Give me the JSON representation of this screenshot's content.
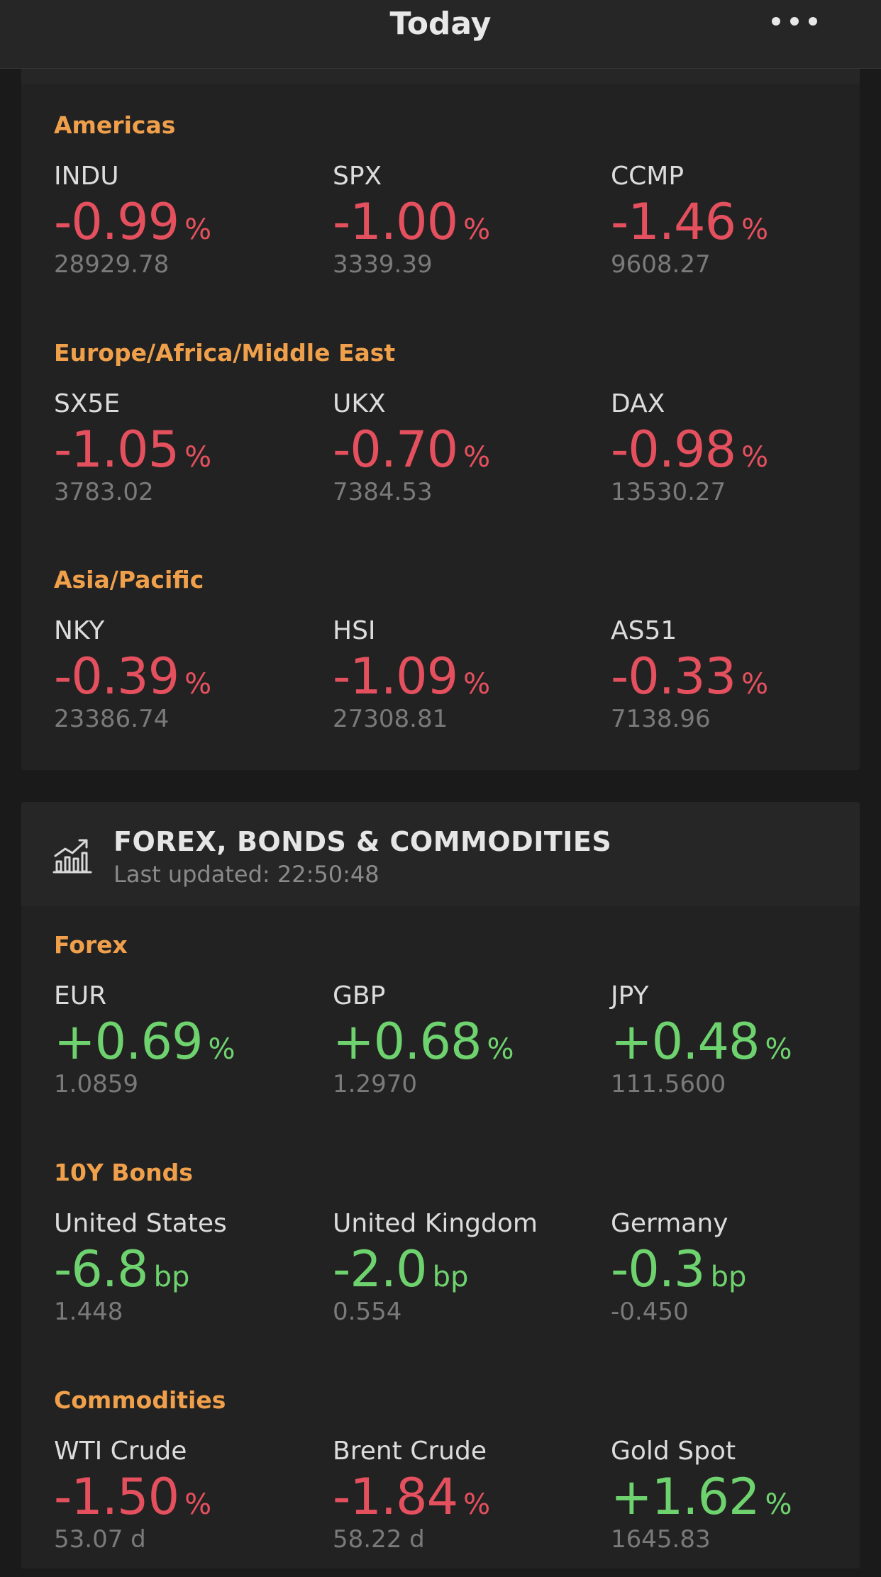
{
  "header": {
    "title": "Today",
    "more_icon": "more-horizontal-icon"
  },
  "markets": {
    "sections": [
      {
        "title": "Americas",
        "quotes": [
          {
            "name": "INDU",
            "change": "-0.99",
            "unit": "%",
            "level": "28929.78",
            "direction": "down"
          },
          {
            "name": "SPX",
            "change": "-1.00",
            "unit": "%",
            "level": "3339.39",
            "direction": "down"
          },
          {
            "name": "CCMP",
            "change": "-1.46",
            "unit": "%",
            "level": "9608.27",
            "direction": "down"
          }
        ]
      },
      {
        "title": "Europe/Africa/Middle East",
        "quotes": [
          {
            "name": "SX5E",
            "change": "-1.05",
            "unit": "%",
            "level": "3783.02",
            "direction": "down"
          },
          {
            "name": "UKX",
            "change": "-0.70",
            "unit": "%",
            "level": "7384.53",
            "direction": "down"
          },
          {
            "name": "DAX",
            "change": "-0.98",
            "unit": "%",
            "level": "13530.27",
            "direction": "down"
          }
        ]
      },
      {
        "title": "Asia/Pacific",
        "quotes": [
          {
            "name": "NKY",
            "change": "-0.39",
            "unit": "%",
            "level": "23386.74",
            "direction": "down"
          },
          {
            "name": "HSI",
            "change": "-1.09",
            "unit": "%",
            "level": "27308.81",
            "direction": "down"
          },
          {
            "name": "AS51",
            "change": "-0.33",
            "unit": "%",
            "level": "7138.96",
            "direction": "down"
          }
        ]
      }
    ]
  },
  "forex_card": {
    "icon": "chart-trend-icon",
    "title": "FOREX, BONDS & COMMODITIES",
    "last_updated": "Last updated: 22:50:48",
    "sections": [
      {
        "title": "Forex",
        "quotes": [
          {
            "name": "EUR",
            "change": "+0.69",
            "unit": "%",
            "level": "1.0859",
            "direction": "up"
          },
          {
            "name": "GBP",
            "change": "+0.68",
            "unit": "%",
            "level": "1.2970",
            "direction": "up"
          },
          {
            "name": "JPY",
            "change": "+0.48",
            "unit": "%",
            "level": "111.5600",
            "direction": "up"
          }
        ]
      },
      {
        "title": "10Y Bonds",
        "quotes": [
          {
            "name": "United States",
            "change": "-6.8",
            "unit": "bp",
            "level": "1.448",
            "direction": "up"
          },
          {
            "name": "United Kingdom",
            "change": "-2.0",
            "unit": "bp",
            "level": "0.554",
            "direction": "up"
          },
          {
            "name": "Germany",
            "change": "-0.3",
            "unit": "bp",
            "level": "-0.450",
            "direction": "up"
          }
        ]
      },
      {
        "title": "Commodities",
        "quotes": [
          {
            "name": "WTI Crude",
            "change": "-1.50",
            "unit": "%",
            "level": "53.07 d",
            "direction": "down"
          },
          {
            "name": "Brent Crude",
            "change": "-1.84",
            "unit": "%",
            "level": "58.22 d",
            "direction": "down"
          },
          {
            "name": "Gold Spot",
            "change": "+1.62",
            "unit": "%",
            "level": "1645.83",
            "direction": "up"
          }
        ]
      }
    ]
  },
  "colors": {
    "accent": "#f0a04b",
    "negative": "#e5505e",
    "positive": "#6ed36e",
    "background": "#1a1a1a",
    "card": "#222222"
  }
}
